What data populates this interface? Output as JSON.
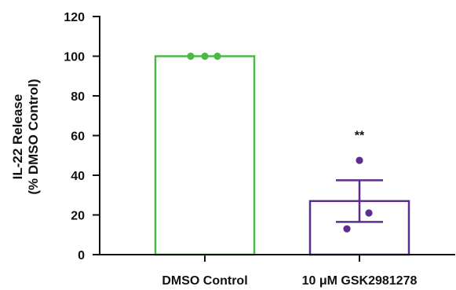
{
  "chart_data": {
    "type": "bar",
    "title": "",
    "xlabel": "",
    "ylabel": [
      "IL-22 Release",
      "(% DMSO Control)"
    ],
    "ylim": [
      0,
      120
    ],
    "yticks": [
      0,
      20,
      40,
      60,
      80,
      100,
      120
    ],
    "categories": [
      "DMSO Control",
      "10 μM GSK2981278"
    ],
    "bars": [
      {
        "category": "DMSO Control",
        "value": 100,
        "error": 0,
        "points": [
          100,
          100,
          100
        ],
        "color": "#4cb848",
        "annotation": ""
      },
      {
        "category": "10 μM GSK2981278",
        "value": 27,
        "error": 10.5,
        "points": [
          47.5,
          21,
          13
        ],
        "color": "#5b2d8e",
        "annotation": "**"
      }
    ],
    "grid": false,
    "legend": false
  }
}
